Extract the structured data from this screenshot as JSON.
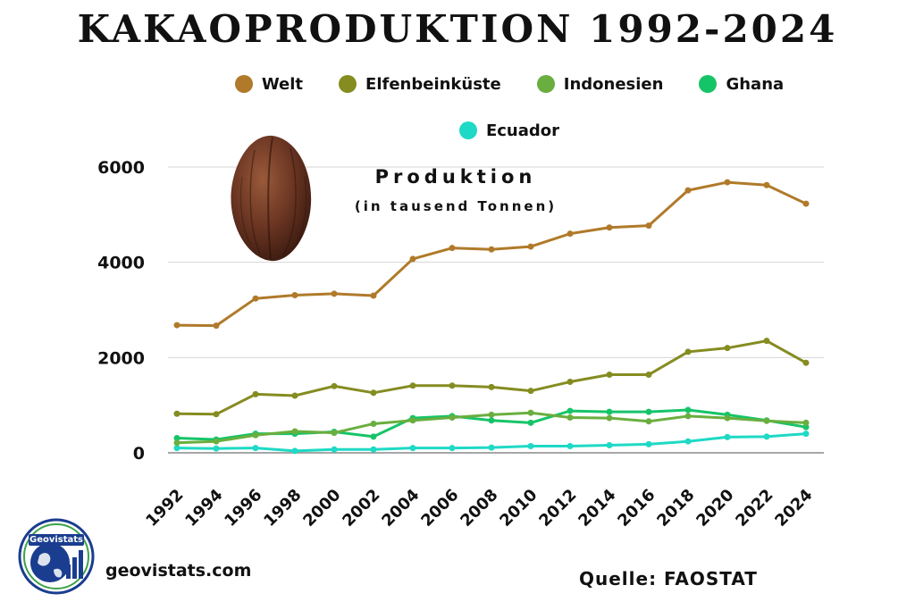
{
  "title": "KAKAOPRODUKTION 1992-2024",
  "subtitle_line1": "Produktion",
  "subtitle_line2": "(in tausend Tonnen)",
  "footer": {
    "site": "geovistats.com",
    "source": "Quelle: FAOSTAT",
    "logo_text": "Geovistats"
  },
  "icons": {
    "bean": "cocoa-bean-icon",
    "logo": "globe-chart-logo-icon"
  },
  "chart_data": {
    "type": "line",
    "x": [
      1992,
      1994,
      1996,
      1998,
      2000,
      2002,
      2004,
      2006,
      2008,
      2010,
      2012,
      2014,
      2016,
      2018,
      2020,
      2022,
      2024
    ],
    "ylim": [
      0,
      6000
    ],
    "yticks": [
      0,
      2000,
      4000,
      6000
    ],
    "xlabel": "",
    "ylabel": "",
    "grid": "horizontal",
    "legend_position": "top",
    "series": [
      {
        "name": "Welt",
        "color": "#b07a2a",
        "values": [
          2680,
          2670,
          3240,
          3310,
          3340,
          3300,
          4070,
          4300,
          4270,
          4330,
          4600,
          4730,
          4770,
          5510,
          5680,
          5620,
          5230
        ]
      },
      {
        "name": "Elfenbeinküste",
        "color": "#858c20",
        "values": [
          820,
          810,
          1230,
          1200,
          1400,
          1260,
          1410,
          1410,
          1380,
          1300,
          1490,
          1640,
          1640,
          2120,
          2200,
          2350,
          1890
        ]
      },
      {
        "name": "Indonesien",
        "color": "#6aae3f",
        "values": [
          210,
          240,
          370,
          450,
          420,
          610,
          680,
          740,
          800,
          840,
          740,
          730,
          660,
          770,
          730,
          670,
          630
        ]
      },
      {
        "name": "Ghana",
        "color": "#16c468",
        "values": [
          310,
          280,
          400,
          400,
          440,
          340,
          730,
          770,
          680,
          630,
          880,
          860,
          860,
          900,
          800,
          680,
          540
        ]
      },
      {
        "name": "Ecuador",
        "color": "#1ed9c5",
        "values": [
          100,
          90,
          100,
          40,
          70,
          70,
          100,
          100,
          110,
          140,
          140,
          160,
          180,
          240,
          330,
          340,
          400
        ]
      }
    ]
  }
}
